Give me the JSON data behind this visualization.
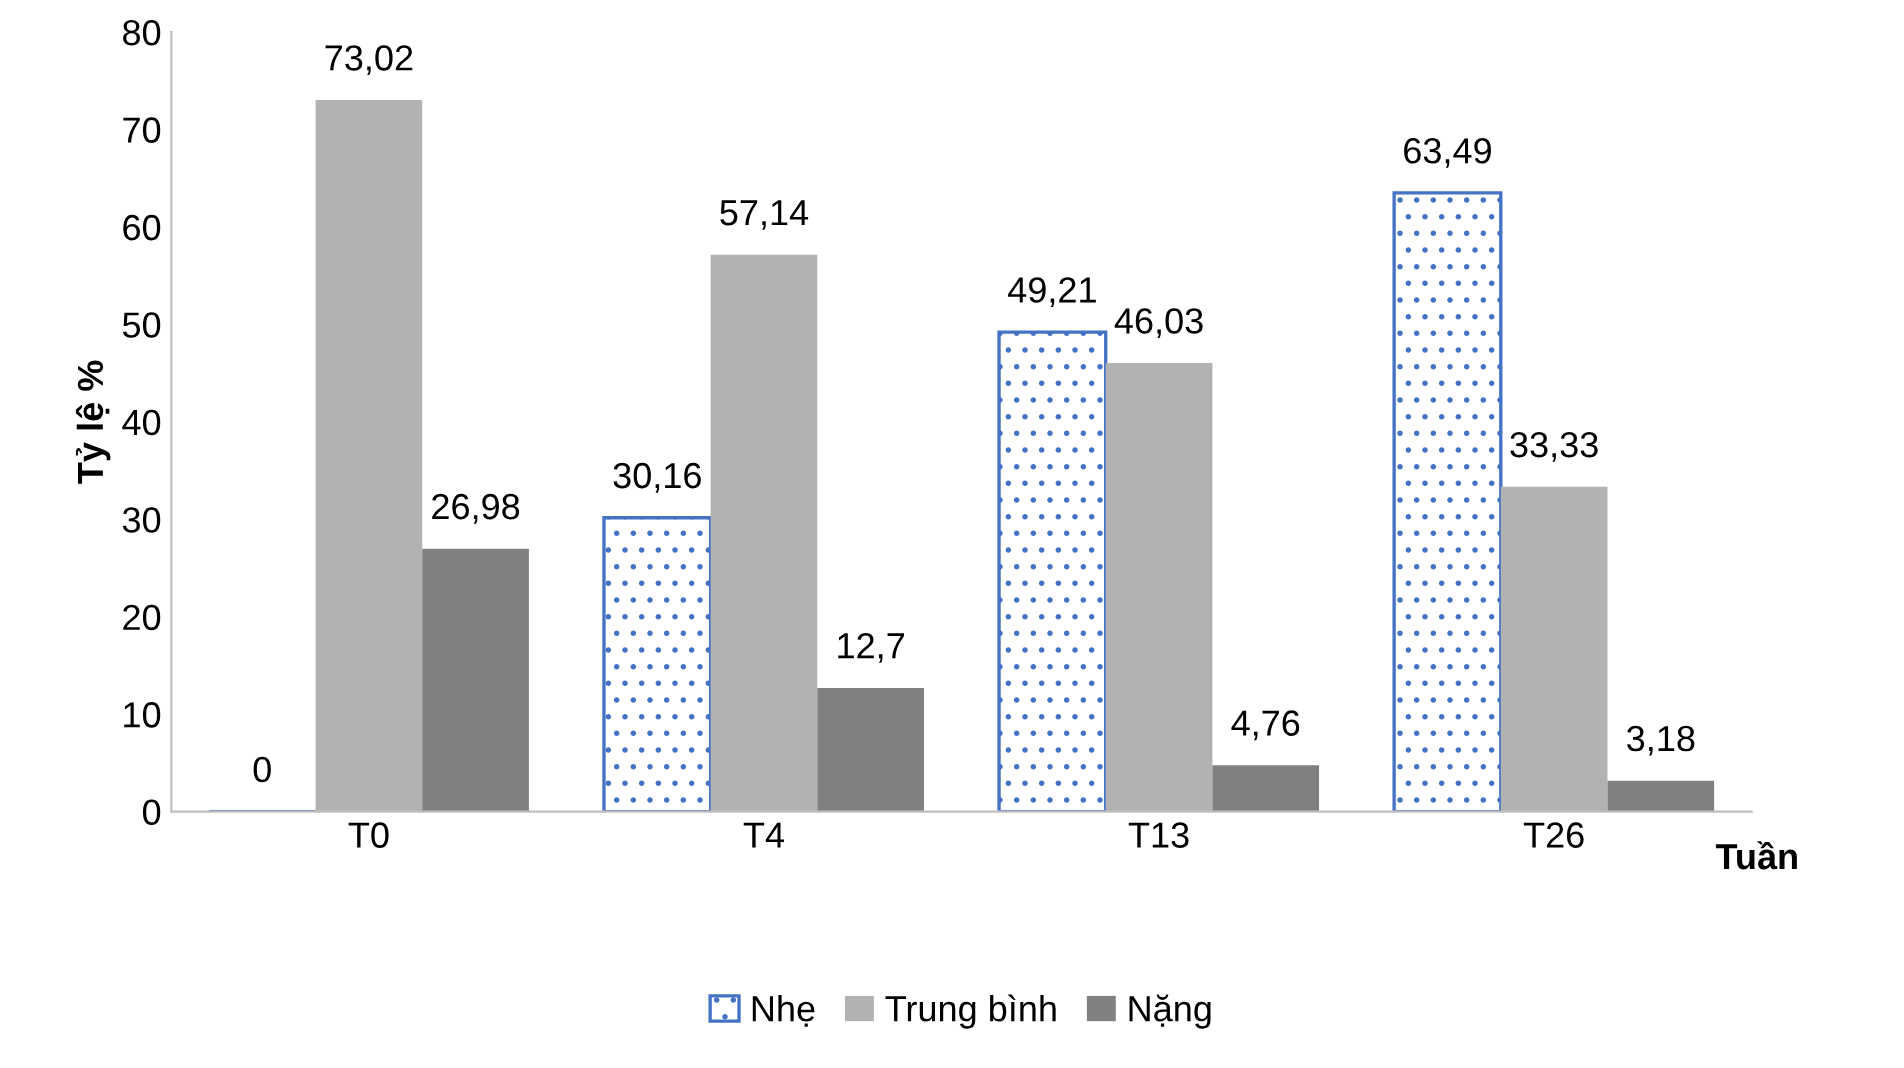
{
  "chart_data": {
    "type": "bar",
    "xlabel": "Tuần",
    "ylabel": "Tỷ lệ %",
    "categories": [
      "T0",
      "T4",
      "T13",
      "T26"
    ],
    "series": [
      {
        "name": "Nhẹ",
        "color": "#4472c4",
        "values": [
          0,
          30.16,
          49.21,
          63.49
        ],
        "value_labels": [
          "0",
          "30,16",
          "49,21",
          "63,49"
        ]
      },
      {
        "name": "Trung bình",
        "color": "#b2b2b2",
        "values": [
          73.02,
          57.14,
          46.03,
          33.33
        ],
        "value_labels": [
          "73,02",
          "57,14",
          "46,03",
          "33,33"
        ]
      },
      {
        "name": "Nặng",
        "color": "#808080",
        "values": [
          26.98,
          12.7,
          4.76,
          3.18
        ],
        "value_labels": [
          "26,98",
          "12,7",
          "4,76",
          "3,18"
        ]
      }
    ],
    "ylim": [
      0,
      80
    ],
    "yticks": [
      0,
      10,
      20,
      30,
      40,
      50,
      60,
      70,
      80
    ],
    "grid": false,
    "legend": "bottom"
  }
}
